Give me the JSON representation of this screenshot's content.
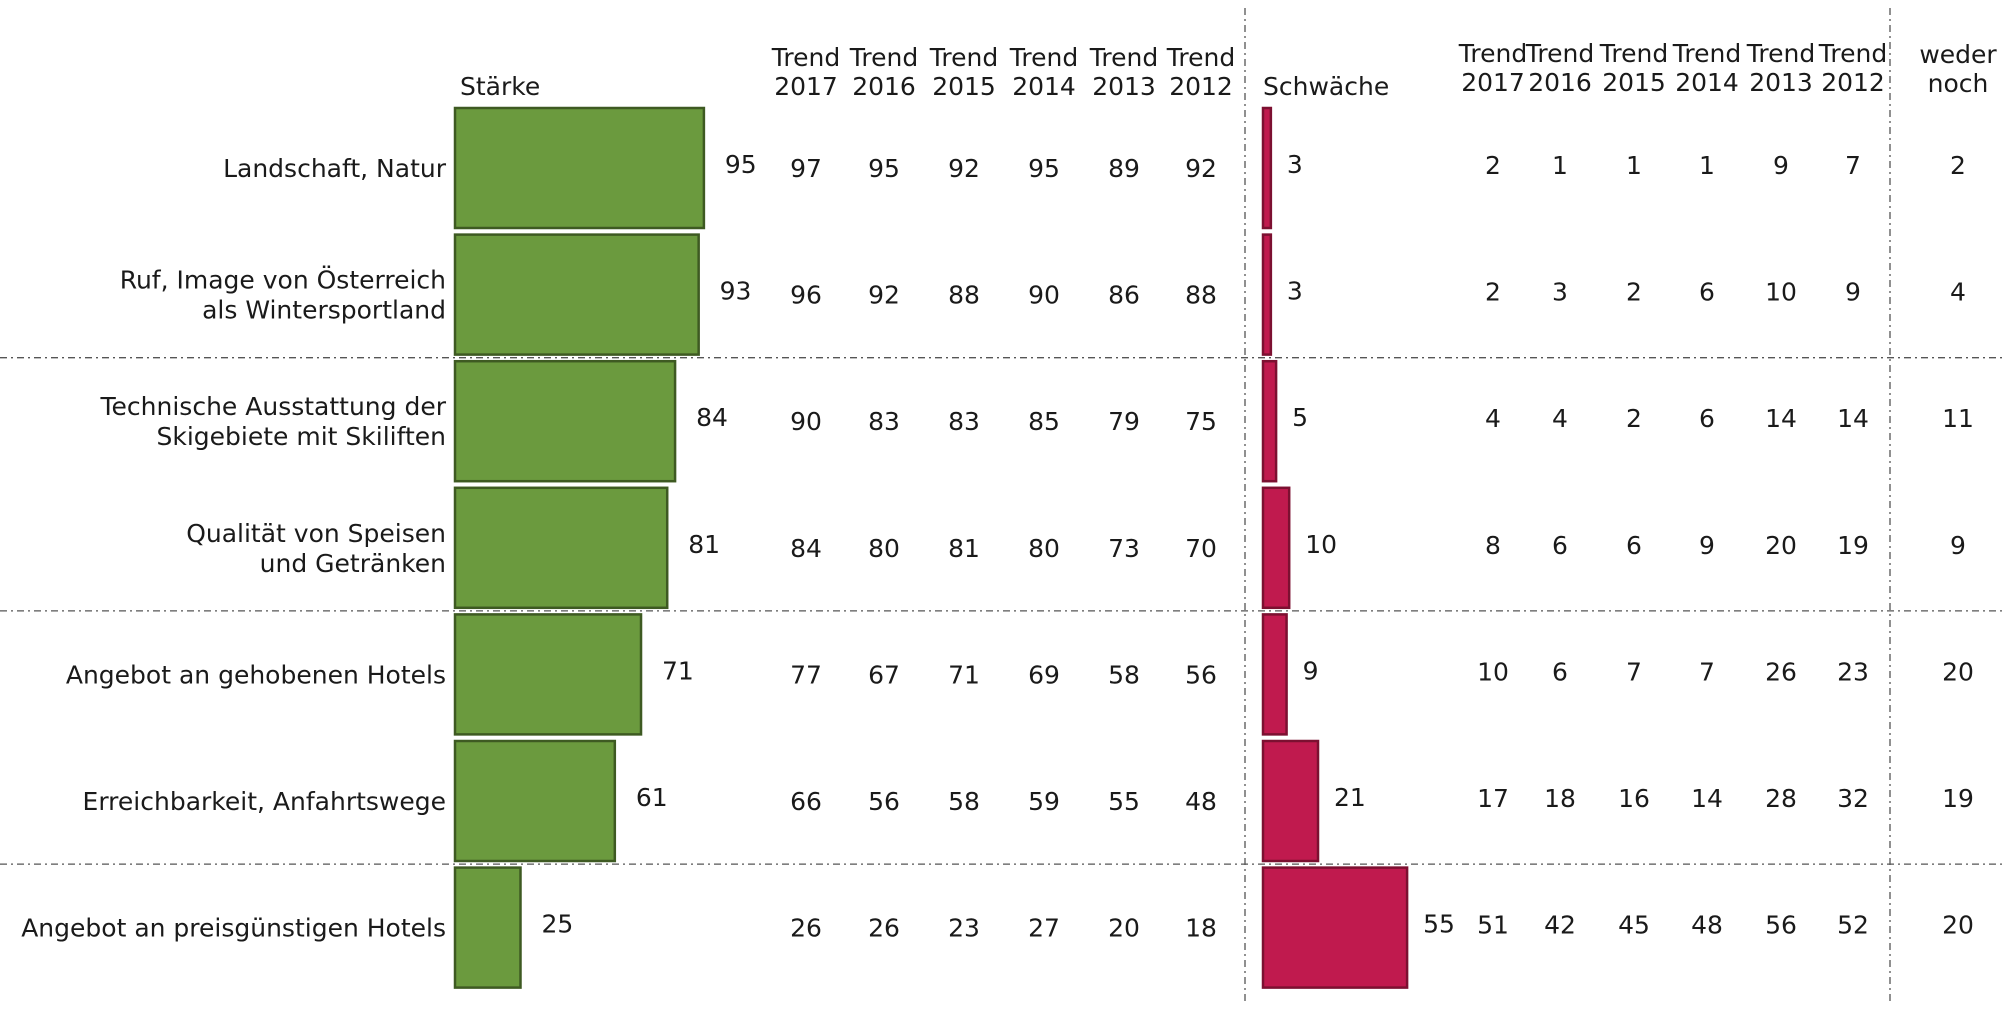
{
  "chart_data": {
    "type": "bar",
    "categories": [
      [
        "Landschaft, Natur"
      ],
      [
        "Ruf, Image von Österreich",
        "als Wintersportland"
      ],
      [
        "Technische Ausstattung der",
        "Skigebiete mit Skiliften"
      ],
      [
        "Qualität von Speisen",
        "und Getränken"
      ],
      [
        "Angebot an gehobenen Hotels"
      ],
      [
        "Erreichbarkeit, Anfahrtswege"
      ],
      [
        "Angebot an preisgünstigen Hotels"
      ]
    ],
    "strength": {
      "label": "Stärke",
      "values": [
        95,
        93,
        84,
        81,
        71,
        61,
        25
      ],
      "color": "#6b9a3e",
      "trend_headers": [
        [
          "Trend",
          "2017"
        ],
        [
          "Trend",
          "2016"
        ],
        [
          "Trend",
          "2015"
        ],
        [
          "Trend",
          "2014"
        ],
        [
          "Trend",
          "2013"
        ],
        [
          "Trend",
          "2012"
        ]
      ],
      "trends": [
        [
          97,
          95,
          92,
          95,
          89,
          92
        ],
        [
          96,
          92,
          88,
          90,
          86,
          88
        ],
        [
          90,
          83,
          83,
          85,
          79,
          75
        ],
        [
          84,
          80,
          81,
          80,
          73,
          70
        ],
        [
          77,
          67,
          71,
          69,
          58,
          56
        ],
        [
          66,
          56,
          58,
          59,
          55,
          48
        ],
        [
          26,
          26,
          23,
          27,
          20,
          18
        ]
      ]
    },
    "weakness": {
      "label": "Schwäche",
      "values": [
        3,
        3,
        5,
        10,
        9,
        21,
        55
      ],
      "color": "#c01a4e",
      "trend_headers": [
        [
          "Trend",
          "2017"
        ],
        [
          "Trend",
          "2016"
        ],
        [
          "Trend",
          "2015"
        ],
        [
          "Trend",
          "2014"
        ],
        [
          "Trend",
          "2013"
        ],
        [
          "Trend",
          "2012"
        ]
      ],
      "trends": [
        [
          2,
          1,
          1,
          1,
          9,
          7
        ],
        [
          2,
          3,
          2,
          6,
          10,
          9
        ],
        [
          4,
          4,
          2,
          6,
          14,
          14
        ],
        [
          8,
          6,
          6,
          9,
          20,
          19
        ],
        [
          10,
          6,
          7,
          7,
          26,
          23
        ],
        [
          17,
          18,
          16,
          14,
          28,
          32
        ],
        [
          51,
          42,
          45,
          48,
          56,
          52
        ]
      ]
    },
    "neither": {
      "header": [
        "weder",
        "noch"
      ],
      "values": [
        2,
        4,
        11,
        9,
        20,
        19,
        20
      ]
    }
  }
}
